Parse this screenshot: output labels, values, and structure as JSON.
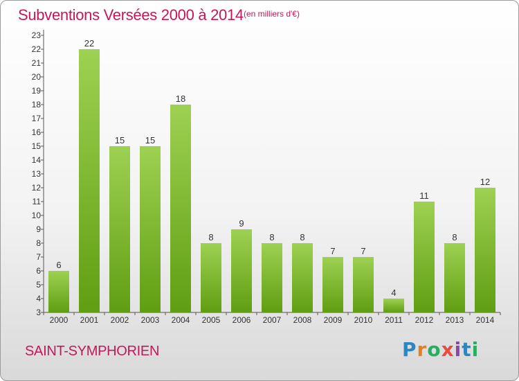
{
  "title": "Subventions Versées 2000 à 2014",
  "subtitle": "(en milliers d'€)",
  "commune": "SAINT-SYMPHORIEN",
  "logo": {
    "text": "Proxiti",
    "letters": [
      {
        "ch": "P",
        "color": "#2e86c1"
      },
      {
        "ch": "r",
        "color": "#e67e22"
      },
      {
        "ch": "o",
        "color": "#27ae60"
      },
      {
        "ch": "x",
        "color": "#e74c3c"
      },
      {
        "ch": "i",
        "color": "#8e44ad"
      },
      {
        "ch": "t",
        "color": "#2e86c1"
      },
      {
        "ch": "i",
        "color": "#27ae60"
      }
    ]
  },
  "colors": {
    "title": "#c2185b",
    "bar_top": "#9ed152",
    "bar_bottom": "#5f9e12",
    "axis": "#555555"
  },
  "chart_data": {
    "type": "bar",
    "categories": [
      "2000",
      "2001",
      "2002",
      "2003",
      "2004",
      "2005",
      "2006",
      "2007",
      "2008",
      "2009",
      "2010",
      "2011",
      "2012",
      "2013",
      "2014"
    ],
    "values": [
      6,
      22,
      15,
      15,
      18,
      8,
      9,
      8,
      8,
      7,
      7,
      4,
      11,
      8,
      12
    ],
    "ylim": [
      3,
      23
    ],
    "yticks": [
      3,
      4,
      5,
      6,
      7,
      8,
      9,
      10,
      11,
      12,
      13,
      14,
      15,
      16,
      17,
      18,
      19,
      20,
      21,
      22,
      23
    ],
    "grid": false,
    "title": "Subventions Versées 2000 à 2014",
    "xlabel": "",
    "ylabel": ""
  }
}
